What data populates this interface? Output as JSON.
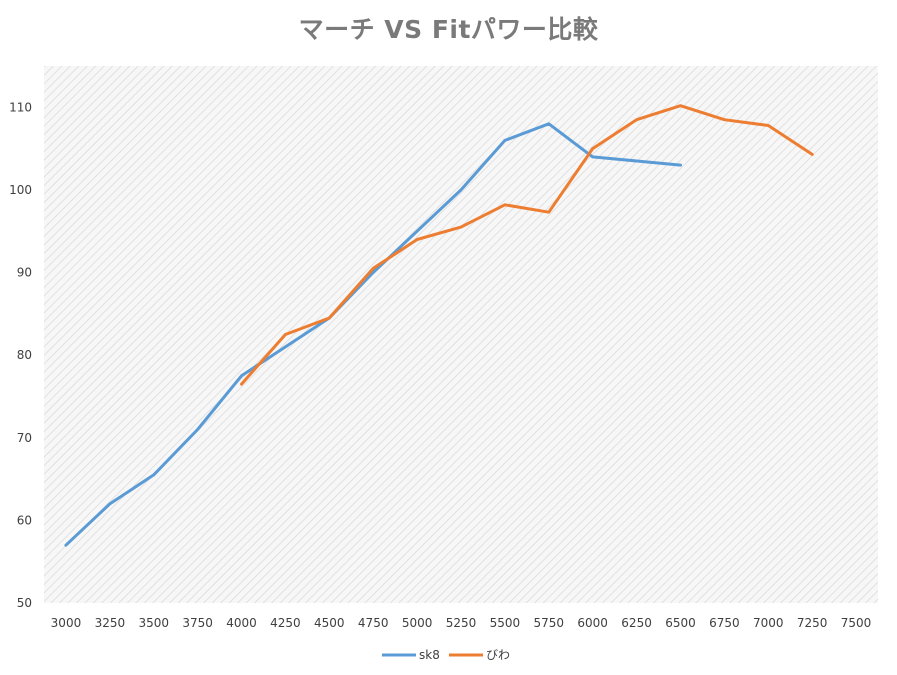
{
  "chart_data": {
    "type": "line",
    "title": "マーチ VS Fitパワー比較",
    "xlabel": "",
    "ylabel": "",
    "categories": [
      "3000",
      "3250",
      "3500",
      "3750",
      "4000",
      "4250",
      "4500",
      "4750",
      "5000",
      "5250",
      "5500",
      "5750",
      "6000",
      "6250",
      "6500",
      "6750",
      "7000",
      "7250",
      "7500"
    ],
    "ylim": [
      50,
      115
    ],
    "yticks": [
      50,
      60,
      70,
      80,
      90,
      100,
      110
    ],
    "grid": "diagonal hatch background",
    "legend_position": "bottom",
    "series": [
      {
        "name": "sk8",
        "color": "#5b9bd5",
        "values": [
          57,
          62,
          65.5,
          71,
          77.5,
          81,
          84.5,
          90,
          95,
          100,
          106,
          108,
          104,
          103.5,
          103,
          null,
          null,
          null,
          null
        ]
      },
      {
        "name": "びわ",
        "color": "#ed7d31",
        "values": [
          null,
          null,
          null,
          null,
          76.5,
          82.5,
          84.5,
          90.5,
          94,
          95.5,
          98.2,
          97.3,
          105,
          108.5,
          110.2,
          108.5,
          107.8,
          104.3,
          null
        ]
      }
    ]
  }
}
